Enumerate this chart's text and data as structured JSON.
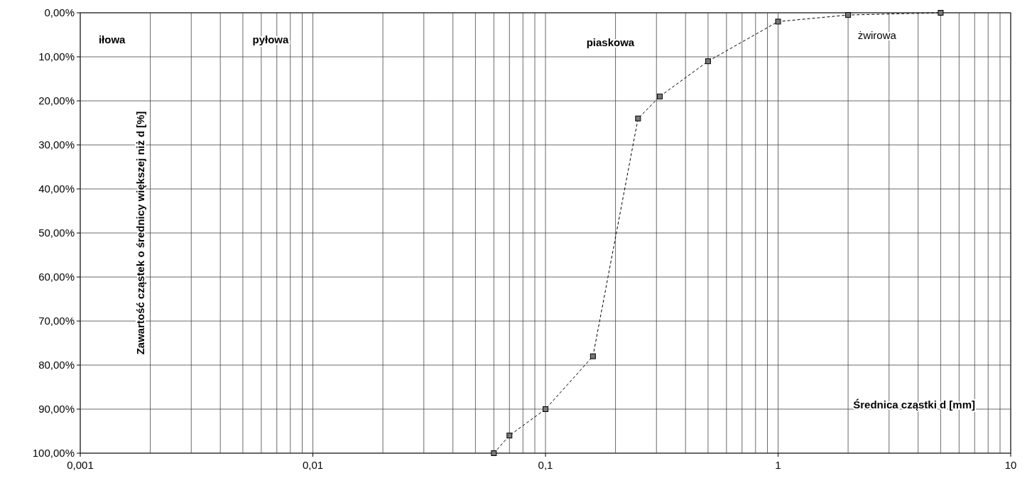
{
  "chart_data": {
    "type": "line",
    "xlabel": "Średnica cząstki d  [mm]",
    "ylabel": "Zawartość cząstek o średnicy   większej niż d [%]",
    "log": "x",
    "grid": true,
    "marker": "square",
    "line_style": "dashed",
    "xlim": [
      0.001,
      10
    ],
    "xticks": [
      {
        "value": 0.001,
        "label": "0,001"
      },
      {
        "value": 0.01,
        "label": "0,01"
      },
      {
        "value": 0.1,
        "label": "0,1"
      },
      {
        "value": 1,
        "label": "1"
      },
      {
        "value": 10,
        "label": "10"
      }
    ],
    "ylim": [
      100,
      0
    ],
    "yticks": [
      {
        "value": 0,
        "label": "0,00%"
      },
      {
        "value": 10,
        "label": "10,00%"
      },
      {
        "value": 20,
        "label": "20,00%"
      },
      {
        "value": 30,
        "label": "30,00%"
      },
      {
        "value": 40,
        "label": "40,00%"
      },
      {
        "value": 50,
        "label": "50,00%"
      },
      {
        "value": 60,
        "label": "60,00%"
      },
      {
        "value": 70,
        "label": "70,00%"
      },
      {
        "value": 80,
        "label": "80,00%"
      },
      {
        "value": 90,
        "label": "90,00%"
      },
      {
        "value": 100,
        "label": "100,00%"
      }
    ],
    "annotations": [
      "iłowa",
      "pyłowa",
      "piaskowa",
      "żwirowa"
    ],
    "series": [
      {
        "color": "#000000",
        "x": [
          0.06,
          0.07,
          0.1,
          0.16,
          0.25,
          0.31,
          0.5,
          1,
          2,
          5
        ],
        "values": [
          100,
          96,
          90,
          78,
          24,
          19,
          11,
          2,
          0.5,
          0
        ]
      }
    ]
  }
}
